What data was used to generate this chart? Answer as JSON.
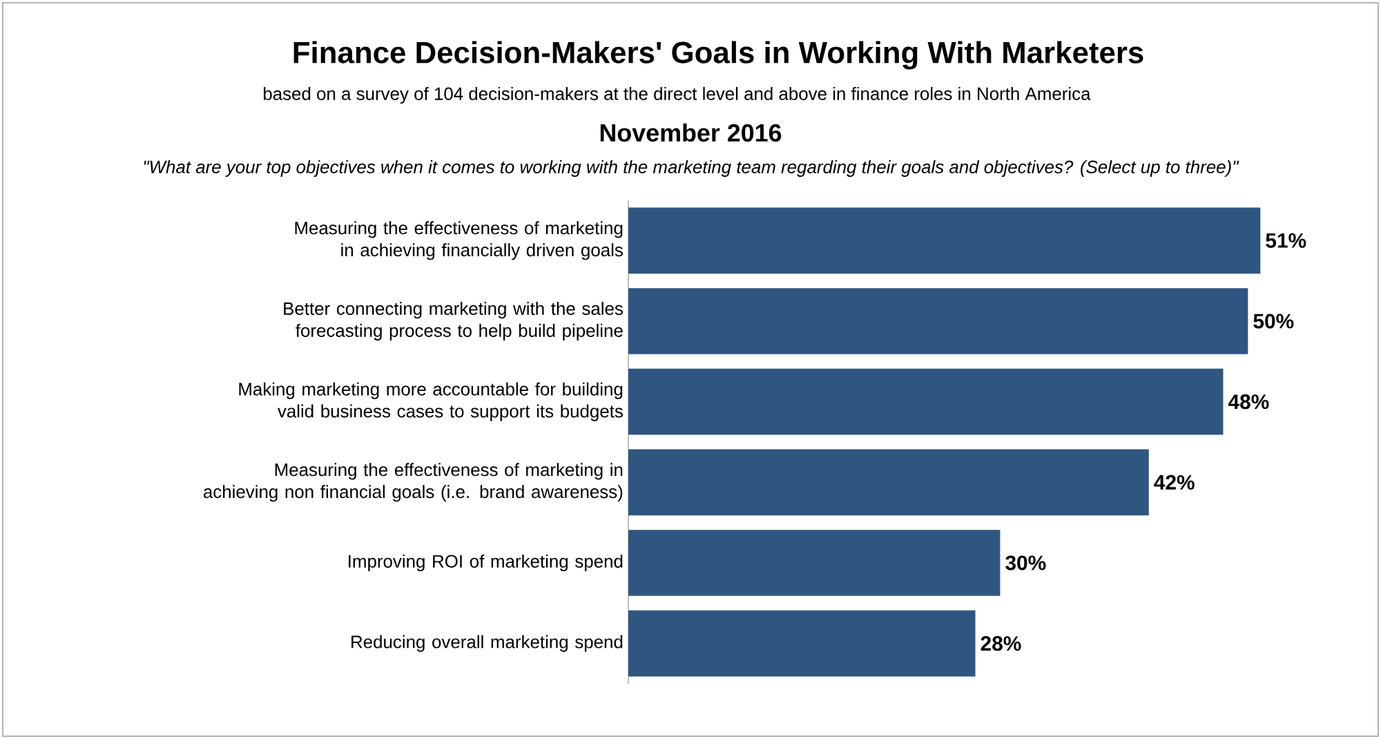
{
  "chart_data": {
    "type": "bar",
    "orientation": "horizontal",
    "title": "Finance Decision-Makers' Goals in Working With Marketers",
    "subtitle": "based on a survey of 104 decision-makers at the direct level and above in finance roles in North America",
    "annotations": [
      "November 2016",
      "\"What are your top objectives when it comes to working with the marketing team regarding their goals and objectives? (Select up to three)\""
    ],
    "categories": [
      "Measuring the effectiveness of marketing in achieving financially driven goals",
      "Better connecting marketing with the sales forecasting process to help build pipeline",
      "Making marketing more accountable for building valid business cases to support its budgets",
      "Measuring the effectiveness of marketing in achieving non financial goals (i.e. brand awareness)",
      "Improving ROI of marketing spend",
      "Reducing overall marketing spend"
    ],
    "values": [
      51,
      50,
      48,
      42,
      30,
      28
    ],
    "value_labels": [
      "51%",
      "50%",
      "48%",
      "42%",
      "30%",
      "28%"
    ],
    "color": "#2f5680"
  }
}
